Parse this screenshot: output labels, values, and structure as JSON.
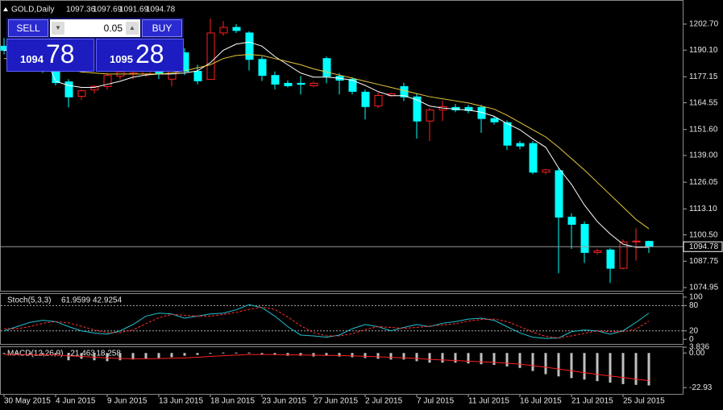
{
  "header": {
    "symbol": "GOLD,Daily"
  },
  "trade_panel": {
    "sell": "SELL",
    "buy": "BUY",
    "lot": "0.05",
    "sell_big": "1094",
    "sell_small": "78",
    "buy_big": "1095",
    "buy_small": "28"
  },
  "chart_data": [
    {
      "type": "candlestick",
      "title": "GOLD,Daily",
      "categories": [
        "30 May 2015",
        null,
        null,
        null,
        "4 Jun 2015",
        null,
        null,
        null,
        "9 Jun 2015",
        null,
        null,
        null,
        "13 Jun 2015",
        null,
        null,
        null,
        "18 Jun 2015",
        null,
        null,
        null,
        "23 Jun 2015",
        null,
        null,
        null,
        "27 Jun 2015",
        null,
        null,
        null,
        "2 Jul 2015",
        null,
        null,
        null,
        "7 Jul 2015",
        null,
        null,
        null,
        "11 Jul 2015",
        null,
        null,
        null,
        "16 Jul 2015",
        null,
        null,
        null,
        "21 Jul 2015",
        null,
        null,
        null,
        "25 Jul 2015",
        null,
        null
      ],
      "open": [
        1192,
        1190,
        1187,
        1185,
        1179.8,
        1174.7,
        1167.7,
        1170.8,
        1172.4,
        1177.5,
        1178.5,
        1178.5,
        1179.5,
        1176,
        1188.8,
        1179.8,
        1175.9,
        1198.4,
        1201.1,
        1198.4,
        1185.6,
        1177.8,
        1174,
        1174,
        1172.8,
        1186,
        1177.4,
        1175.9,
        1169.7,
        1163,
        1168,
        1172.4,
        1167.4,
        1155.7,
        1161.1,
        1162.3,
        1162.3,
        1162.3,
        1156.9,
        1154.9,
        1144.8,
        1144.8,
        1130.9,
        1131.6,
        1109.1,
        1105.6,
        1092,
        1093.2,
        1084.3,
        1097.1,
        1097.36
      ],
      "high": [
        1196,
        1194,
        1191,
        1188,
        1183,
        1176,
        1171,
        1173,
        1179,
        1181,
        1180,
        1181,
        1182,
        1182,
        1191,
        1183,
        1205.4,
        1204.2,
        1202.7,
        1199.2,
        1187,
        1179.8,
        1175.5,
        1177.5,
        1175,
        1187,
        1179,
        1177,
        1171,
        1169.5,
        1169.5,
        1174.3,
        1169,
        1162,
        1165.5,
        1164,
        1163.5,
        1163.5,
        1158,
        1156,
        1146,
        1146,
        1132.5,
        1133,
        1111,
        1107,
        1093.7,
        1094,
        1098.3,
        1103.7,
        1097.69
      ],
      "low": [
        1188,
        1185,
        1183,
        1179,
        1173,
        1162.3,
        1166,
        1169,
        1171,
        1176,
        1176,
        1177,
        1176,
        1172.5,
        1178,
        1173.5,
        1175.9,
        1197,
        1198.4,
        1180.2,
        1175.1,
        1171.1,
        1172,
        1168.6,
        1172,
        1174,
        1168.6,
        1168.6,
        1156.5,
        1162,
        1167.5,
        1165.4,
        1147.2,
        1146,
        1155.7,
        1160,
        1159.5,
        1150,
        1154,
        1141.7,
        1142,
        1130,
        1129.8,
        1081.9,
        1093.7,
        1086.9,
        1091,
        1077.2,
        1083.8,
        1088,
        1091.69
      ],
      "close": [
        1190,
        1187,
        1185,
        1181,
        1174.3,
        1167.4,
        1170.4,
        1172.5,
        1177.8,
        1179.6,
        1179,
        1180,
        1178.5,
        1180,
        1179.8,
        1175.2,
        1198.4,
        1201.1,
        1199.6,
        1185.6,
        1177.8,
        1173.6,
        1172.8,
        1173.5,
        1174,
        1177.4,
        1175.5,
        1170.1,
        1162.7,
        1168.1,
        1168.9,
        1167.4,
        1155.7,
        1161.1,
        1162.7,
        1161.1,
        1160.8,
        1156.9,
        1155.3,
        1144,
        1143.6,
        1130.9,
        1132,
        1109.1,
        1105.6,
        1092,
        1092.8,
        1084.3,
        1097.1,
        1097.5,
        1094.78
      ],
      "up_color": "#ff2020",
      "down_color": "#00ffff",
      "overlays": [
        {
          "color": "#ffffff",
          "values": [
            1190,
            1190,
            1190,
            1190,
            1175,
            1173,
            1172,
            1172,
            1173.5,
            1175,
            1177,
            1178,
            1178.5,
            1178.5,
            1179,
            1180,
            1184,
            1190,
            1193,
            1194,
            1192,
            1187,
            1183,
            1179,
            1177,
            1177,
            1176.5,
            1175.5,
            1173,
            1170,
            1168,
            1168,
            1166,
            1163,
            1162,
            1161.5,
            1161,
            1160,
            1158,
            1154.5,
            1151.5,
            1147,
            1143,
            1133,
            1125,
            1115,
            1107,
            1101,
            1096,
            1094.5,
            1094.5
          ]
        },
        {
          "color": "#e8c840",
          "values": [
            1186,
            1186,
            1186,
            1186,
            1183,
            1181,
            1179.5,
            1179,
            1178.5,
            1178.5,
            1178.5,
            1178.5,
            1178.5,
            1179,
            1180,
            1181.5,
            1183,
            1186,
            1187.5,
            1188,
            1187.5,
            1186,
            1184.5,
            1183,
            1181,
            1179.5,
            1178,
            1176.5,
            1175,
            1173.5,
            1172,
            1170.5,
            1169,
            1167.5,
            1166.5,
            1165.5,
            1164.5,
            1163,
            1161.5,
            1158.5,
            1155,
            1151.5,
            1148,
            1143,
            1137.5,
            1132,
            1126,
            1120,
            1114,
            1108,
            1103.5
          ]
        }
      ],
      "ylim": [
        1073.4,
        1214.0
      ],
      "yticks": [
        1074.95,
        1087.75,
        {
          "value": 1100.5,
          "label": "1100.50"
        },
        {
          "value": 1113.1,
          "label": "1113.10"
        },
        1126.05,
        {
          "value": 1139,
          "label": "1139.00"
        },
        {
          "value": 1151.6,
          "label": "1151.60"
        },
        1164.55,
        1177.15,
        {
          "value": 1190.1,
          "label": "1190.10"
        },
        {
          "value": 1202.7,
          "label": "1202.70"
        }
      ]
    },
    {
      "type": "line",
      "title": "Stoch(5,3,3)",
      "series": [
        {
          "color": "#20c0d0",
          "values": [
            20,
            30,
            40,
            45,
            42,
            30,
            20,
            15,
            12,
            20,
            35,
            55,
            62,
            60,
            50,
            55,
            60,
            62,
            70,
            82,
            75,
            55,
            30,
            10,
            8,
            5,
            10,
            25,
            35,
            30,
            20,
            28,
            35,
            30,
            38,
            42,
            48,
            50,
            45,
            30,
            15,
            5,
            2,
            3,
            18,
            22,
            20,
            12,
            20,
            40,
            61.9599
          ]
        },
        {
          "color": "#ff3030",
          "dashed": true,
          "values": [
            25,
            25,
            30,
            38,
            42,
            39,
            31,
            22,
            16,
            16,
            22,
            37,
            51,
            59,
            57,
            55,
            55,
            59,
            64,
            71,
            76,
            71,
            53,
            32,
            16,
            8,
            8,
            13,
            23,
            30,
            28,
            26,
            28,
            31,
            34,
            37,
            43,
            47,
            48,
            42,
            30,
            17,
            7,
            3,
            8,
            14,
            20,
            18,
            18,
            24,
            42.9254
          ]
        }
      ],
      "levels": [
        80,
        20
      ],
      "ylim": [
        -11.1,
        107.4
      ],
      "yticks": [
        100,
        80,
        20,
        0
      ]
    },
    {
      "type": "bar",
      "title": "MACD(12,26,9)",
      "color": "#c0c0c0",
      "values": [
        -0.5,
        -0.8,
        -1,
        -1.2,
        -1.3,
        -4.8,
        -3.8,
        -4.8,
        -5.4,
        -4.8,
        -4.3,
        -3.8,
        -3.3,
        -2.8,
        -1.8,
        -1.3,
        -0.3,
        0.3,
        0.3,
        0.3,
        -0.8,
        -1.3,
        -1.8,
        -1.8,
        -2.3,
        -1.8,
        -2.3,
        -2.8,
        -3.3,
        -3.8,
        -4.3,
        -4.3,
        -5.4,
        -6.4,
        -6.4,
        -6.4,
        -6.9,
        -7.4,
        -7.9,
        -8.9,
        -9.9,
        -11.9,
        -14,
        -15.5,
        -16.6,
        -17.6,
        -18.6,
        -19.6,
        -20.6,
        -21.1,
        -21.463
      ],
      "signal": {
        "color": "#ff2020",
        "values": [
          -1,
          -1,
          -1.1,
          -1.2,
          -1.2,
          -1.9,
          -2.3,
          -2.8,
          -3.3,
          -3.6,
          -3.8,
          -3.8,
          -3.7,
          -3.5,
          -3.2,
          -2.8,
          -2.3,
          -1.8,
          -1.4,
          -1,
          -1,
          -1,
          -1.2,
          -1.3,
          -1.5,
          -1.6,
          -1.7,
          -1.9,
          -2.2,
          -2.5,
          -2.9,
          -3.2,
          -3.6,
          -4.2,
          -4.6,
          -5,
          -5.4,
          -5.8,
          -6.2,
          -6.8,
          -7.4,
          -8.3,
          -9.4,
          -10.6,
          -11.8,
          -13,
          -14.1,
          -15.2,
          -16.2,
          -17.3,
          -18.258
        ]
      },
      "ylim": [
        -27.05,
        3.86
      ],
      "yticks": [
        {
          "value": 3.836,
          "label": "3.836"
        },
        {
          "value": 0,
          "label": "0.00"
        },
        -22.93
      ]
    }
  ]
}
